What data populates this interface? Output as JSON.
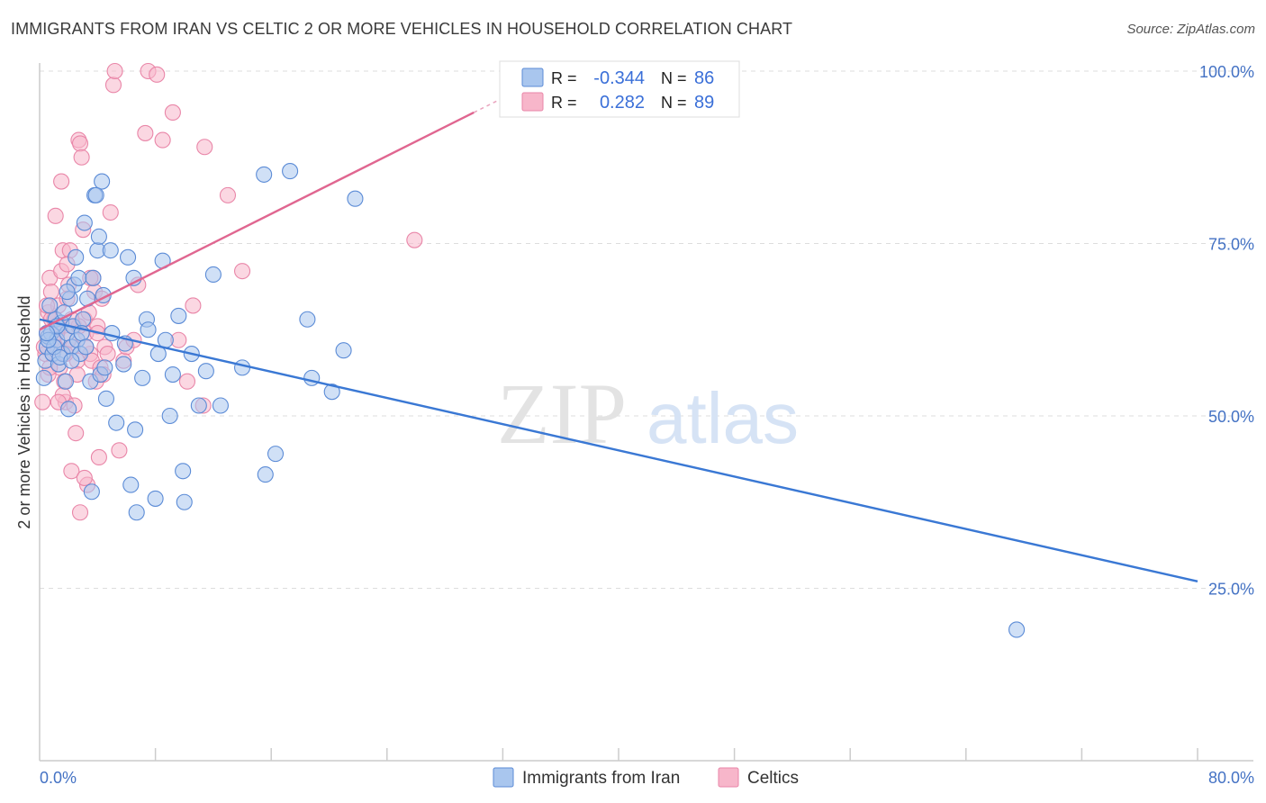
{
  "title": "IMMIGRANTS FROM IRAN VS CELTIC 2 OR MORE VEHICLES IN HOUSEHOLD CORRELATION CHART",
  "source": "Source: ZipAtlas.com",
  "watermark": {
    "zip": "ZIP",
    "atlas": "atlas"
  },
  "colors": {
    "blue_fill": "#a9c6ee",
    "blue_stroke": "#5b8bd6",
    "blue_line": "#3a78d4",
    "pink_fill": "#f7b6ca",
    "pink_stroke": "#e986a8",
    "pink_line": "#e06690",
    "tick_label": "#4472c4",
    "grid": "#dddddd"
  },
  "chart_data": {
    "type": "scatter",
    "title": "IMMIGRANTS FROM IRAN VS CELTIC 2 OR MORE VEHICLES IN HOUSEHOLD CORRELATION CHART",
    "xlabel": "",
    "ylabel": "2 or more Vehicles in Household",
    "xlim": [
      0,
      80
    ],
    "ylim": [
      0,
      100
    ],
    "x_tick_labels": [
      "0.0%",
      "80.0%"
    ],
    "y_ticks": [
      25,
      50,
      75,
      100
    ],
    "y_tick_labels": [
      "25.0%",
      "50.0%",
      "75.0%",
      "100.0%"
    ],
    "legend_stats": [
      {
        "r_label": "R =",
        "r_value": "-0.344",
        "n_label": "N =",
        "n_value": "86"
      },
      {
        "r_label": "R =",
        "r_value": "0.282",
        "n_label": "N =",
        "n_value": "89"
      }
    ],
    "series": [
      {
        "name": "Immigrants from Iran",
        "color": "blue",
        "trend": {
          "x": [
            0,
            80
          ],
          "y": [
            64,
            26
          ]
        },
        "points": [
          [
            0.3,
            55.5
          ],
          [
            0.4,
            58
          ],
          [
            0.5,
            60
          ],
          [
            0.6,
            61.5
          ],
          [
            0.8,
            62
          ],
          [
            0.9,
            59
          ],
          [
            1.1,
            64
          ],
          [
            1.2,
            61
          ],
          [
            1.3,
            57.5
          ],
          [
            1.5,
            63.5
          ],
          [
            1.6,
            59
          ],
          [
            1.7,
            65
          ],
          [
            1.8,
            55
          ],
          [
            1.9,
            62
          ],
          [
            2.0,
            51
          ],
          [
            2.1,
            67
          ],
          [
            2.2,
            60
          ],
          [
            2.3,
            63
          ],
          [
            2.4,
            69
          ],
          [
            2.5,
            73
          ],
          [
            2.6,
            61
          ],
          [
            2.7,
            70
          ],
          [
            2.8,
            59
          ],
          [
            3.0,
            64
          ],
          [
            3.1,
            78
          ],
          [
            3.3,
            67
          ],
          [
            3.5,
            55
          ],
          [
            3.6,
            39
          ],
          [
            3.7,
            70
          ],
          [
            3.8,
            82
          ],
          [
            4.0,
            74
          ],
          [
            4.1,
            76
          ],
          [
            4.2,
            56
          ],
          [
            4.3,
            84
          ],
          [
            4.4,
            67.5
          ],
          [
            4.6,
            52.5
          ],
          [
            4.9,
            74
          ],
          [
            5.3,
            49
          ],
          [
            5.8,
            57.5
          ],
          [
            5.9,
            60.5
          ],
          [
            6.1,
            73
          ],
          [
            6.3,
            40
          ],
          [
            6.5,
            70
          ],
          [
            6.6,
            48
          ],
          [
            6.7,
            36
          ],
          [
            7.1,
            55.5
          ],
          [
            7.4,
            64
          ],
          [
            7.5,
            62.5
          ],
          [
            8.0,
            38
          ],
          [
            8.2,
            59
          ],
          [
            8.5,
            72.5
          ],
          [
            8.7,
            61
          ],
          [
            9.0,
            50
          ],
          [
            9.2,
            56
          ],
          [
            9.6,
            64.5
          ],
          [
            9.9,
            42
          ],
          [
            10.0,
            37.5
          ],
          [
            10.5,
            59
          ],
          [
            11.0,
            51.5
          ],
          [
            11.5,
            56.5
          ],
          [
            12.0,
            70.5
          ],
          [
            12.5,
            51.5
          ],
          [
            14.0,
            57
          ],
          [
            15.5,
            85
          ],
          [
            15.6,
            41.5
          ],
          [
            16.3,
            44.5
          ],
          [
            17.3,
            85.5
          ],
          [
            18.5,
            64
          ],
          [
            18.8,
            55.5
          ],
          [
            20.2,
            53.5
          ],
          [
            21.0,
            59.5
          ],
          [
            21.8,
            81.5
          ],
          [
            67.5,
            19
          ],
          [
            0.7,
            66
          ],
          [
            1.0,
            60
          ],
          [
            1.4,
            58.5
          ],
          [
            2.9,
            62
          ],
          [
            3.2,
            60
          ],
          [
            3.9,
            82
          ],
          [
            4.5,
            57
          ],
          [
            5.0,
            62
          ],
          [
            1.9,
            68
          ],
          [
            2.2,
            58
          ],
          [
            1.2,
            63
          ],
          [
            0.6,
            61
          ],
          [
            0.5,
            62
          ]
        ]
      },
      {
        "name": "Celtics",
        "color": "pink",
        "trend": {
          "x": [
            0,
            30
          ],
          "y": [
            62.5,
            94
          ]
        },
        "points": [
          [
            0.2,
            52
          ],
          [
            0.4,
            59
          ],
          [
            0.5,
            62
          ],
          [
            0.6,
            65
          ],
          [
            0.7,
            70
          ],
          [
            0.8,
            68
          ],
          [
            0.9,
            61
          ],
          [
            1.0,
            64
          ],
          [
            1.1,
            60
          ],
          [
            1.2,
            63
          ],
          [
            1.3,
            66
          ],
          [
            1.4,
            57
          ],
          [
            1.5,
            71
          ],
          [
            1.6,
            74
          ],
          [
            1.7,
            55
          ],
          [
            1.8,
            52
          ],
          [
            1.9,
            67
          ],
          [
            2.0,
            69
          ],
          [
            2.1,
            74
          ],
          [
            2.2,
            42
          ],
          [
            2.3,
            60
          ],
          [
            2.4,
            63
          ],
          [
            2.5,
            47.5
          ],
          [
            2.6,
            58
          ],
          [
            2.7,
            90
          ],
          [
            2.8,
            89.5
          ],
          [
            2.9,
            87.5
          ],
          [
            3.0,
            77
          ],
          [
            3.1,
            64
          ],
          [
            3.2,
            62
          ],
          [
            3.3,
            40
          ],
          [
            3.4,
            65
          ],
          [
            3.5,
            59
          ],
          [
            3.6,
            58
          ],
          [
            3.7,
            70
          ],
          [
            3.8,
            68
          ],
          [
            3.9,
            55
          ],
          [
            4.0,
            63
          ],
          [
            4.2,
            57
          ],
          [
            4.4,
            56
          ],
          [
            4.5,
            60
          ],
          [
            4.7,
            59
          ],
          [
            4.9,
            79.5
          ],
          [
            5.1,
            98
          ],
          [
            5.2,
            100
          ],
          [
            5.5,
            45
          ],
          [
            5.8,
            58
          ],
          [
            6.0,
            60
          ],
          [
            6.5,
            61
          ],
          [
            6.8,
            69
          ],
          [
            7.3,
            91
          ],
          [
            7.5,
            100
          ],
          [
            8.1,
            99.5
          ],
          [
            8.5,
            90
          ],
          [
            9.2,
            94
          ],
          [
            9.6,
            61
          ],
          [
            10.2,
            55
          ],
          [
            10.6,
            66
          ],
          [
            11.3,
            51.5
          ],
          [
            11.4,
            89
          ],
          [
            13.0,
            82
          ],
          [
            14.0,
            71
          ],
          [
            25.9,
            75.5
          ],
          [
            1.5,
            84
          ],
          [
            1.1,
            79
          ],
          [
            0.3,
            60
          ],
          [
            0.6,
            56
          ],
          [
            1.6,
            53
          ],
          [
            1.9,
            72
          ],
          [
            2.4,
            51.5
          ],
          [
            2.7,
            63
          ],
          [
            3.5,
            70
          ],
          [
            4.0,
            62
          ],
          [
            4.3,
            67
          ],
          [
            0.8,
            64
          ],
          [
            1.3,
            52
          ],
          [
            0.9,
            59
          ],
          [
            2.0,
            61
          ],
          [
            2.8,
            36
          ],
          [
            3.1,
            41
          ],
          [
            4.1,
            44
          ],
          [
            1.2,
            62
          ],
          [
            0.7,
            57
          ],
          [
            1.4,
            63
          ],
          [
            2.2,
            64
          ],
          [
            0.5,
            66
          ],
          [
            1.8,
            59
          ],
          [
            3.2,
            60
          ],
          [
            2.6,
            56
          ]
        ]
      }
    ]
  }
}
